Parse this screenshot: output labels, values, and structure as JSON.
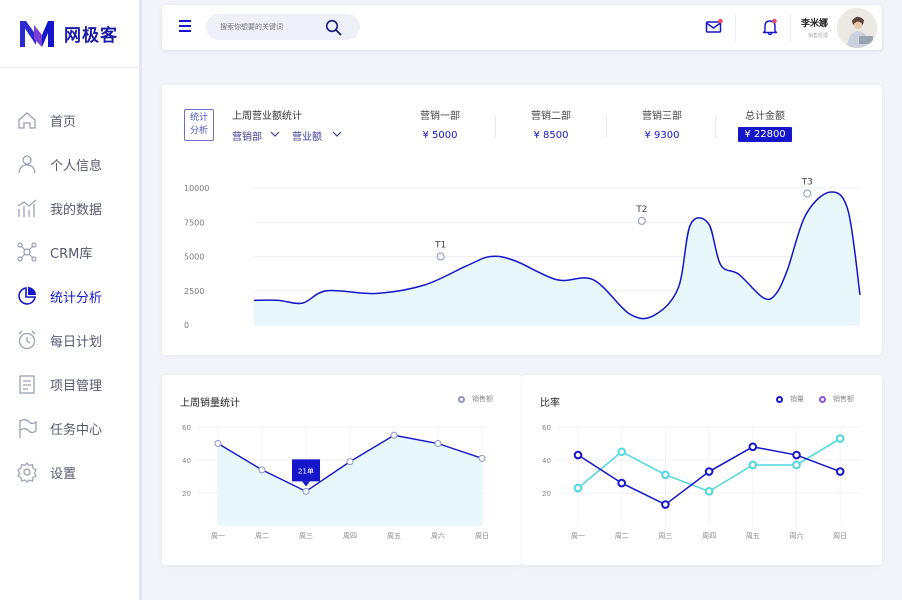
{
  "app": {
    "logo_text": "网极客"
  },
  "sidebar": {
    "items": [
      {
        "label": "首页",
        "icon": "home-icon",
        "active": false
      },
      {
        "label": "个人信息",
        "icon": "user-icon",
        "active": false
      },
      {
        "label": "我的数据",
        "icon": "chart-icon",
        "active": false
      },
      {
        "label": "CRM库",
        "icon": "network-icon",
        "active": false
      },
      {
        "label": "统计分析",
        "icon": "pie-icon",
        "active": true
      },
      {
        "label": "每日计划",
        "icon": "clock-icon",
        "active": false
      },
      {
        "label": "项目管理",
        "icon": "list-icon",
        "active": false
      },
      {
        "label": "任务中心",
        "icon": "flag-icon",
        "active": false
      },
      {
        "label": "设置",
        "icon": "gear-icon",
        "active": false
      }
    ]
  },
  "topbar": {
    "search_placeholder": "搜索你想要的关键词",
    "user_name": "李米娜",
    "user_role": "销售经理"
  },
  "colors": {
    "accent": "#1515c9",
    "fill": "#e8f7f9",
    "cyan": "#4fd6df",
    "purple": "#8a55d8"
  },
  "stats": {
    "badge_line1": "统计",
    "badge_line2": "分析",
    "title": "上周营业额统计",
    "dropdown_dept": "营销部",
    "dropdown_metric": "营业额",
    "columns": [
      {
        "label": "营销一部",
        "value": "¥ 5000"
      },
      {
        "label": "营销二部",
        "value": "¥ 8500"
      },
      {
        "label": "营销三部",
        "value": "¥ 9300"
      },
      {
        "label": "总计金额",
        "value": "¥ 22800"
      }
    ]
  },
  "sales_card": {
    "title": "上周销量统计",
    "legend": "销售额"
  },
  "ratio_card": {
    "title": "比率",
    "legend_a": "销量",
    "legend_b": "销售额"
  },
  "chart_data": [
    {
      "type": "area",
      "title": "",
      "ylim": [
        0,
        10000
      ],
      "yticks": [
        0,
        2500,
        5000,
        7500,
        10000
      ],
      "grid": true,
      "series": [
        {
          "x": [
            0,
            0.04,
            0.08,
            0.12,
            0.2,
            0.28,
            0.35,
            0.39,
            0.43,
            0.5,
            0.56,
            0.62,
            0.66,
            0.7,
            0.72,
            0.75,
            0.77,
            0.8,
            0.84,
            0.86,
            0.88,
            0.91,
            0.95,
            0.98,
            1.0
          ],
          "values": [
            1800,
            1800,
            1600,
            2500,
            2300,
            2900,
            4300,
            5000,
            4700,
            3300,
            3300,
            800,
            700,
            2700,
            7300,
            7400,
            4400,
            3700,
            2000,
            2200,
            4000,
            8000,
            9700,
            8400,
            2200
          ]
        }
      ],
      "annotations": [
        {
          "label": "T1",
          "x": 0.308,
          "value": 5000
        },
        {
          "label": "T2",
          "x": 0.64,
          "value": 7600
        },
        {
          "label": "T3",
          "x": 0.913,
          "value": 9600
        }
      ]
    },
    {
      "type": "area",
      "title": "上周销量统计",
      "categories": [
        "周一",
        "周二",
        "周三",
        "周四",
        "周五",
        "周六",
        "周日"
      ],
      "ylim": [
        0,
        60
      ],
      "yticks": [
        20,
        40,
        60
      ],
      "series": [
        {
          "name": "销售额",
          "values": [
            50,
            34,
            21,
            39,
            55,
            50,
            41
          ]
        }
      ],
      "annotations": [
        {
          "label": "21单",
          "category": "周三",
          "value": 21
        }
      ]
    },
    {
      "type": "line",
      "title": "比率",
      "categories": [
        "周一",
        "周二",
        "周三",
        "周四",
        "周五",
        "周六",
        "周日"
      ],
      "ylim": [
        0,
        60
      ],
      "yticks": [
        20,
        40,
        60
      ],
      "series": [
        {
          "name": "销量",
          "color": "#1515c9",
          "values": [
            43,
            26,
            13,
            33,
            48,
            43,
            33
          ]
        },
        {
          "name": "销售额",
          "color": "#4fd6df",
          "values": [
            23,
            45,
            31,
            21,
            37,
            37,
            53
          ]
        }
      ]
    }
  ]
}
